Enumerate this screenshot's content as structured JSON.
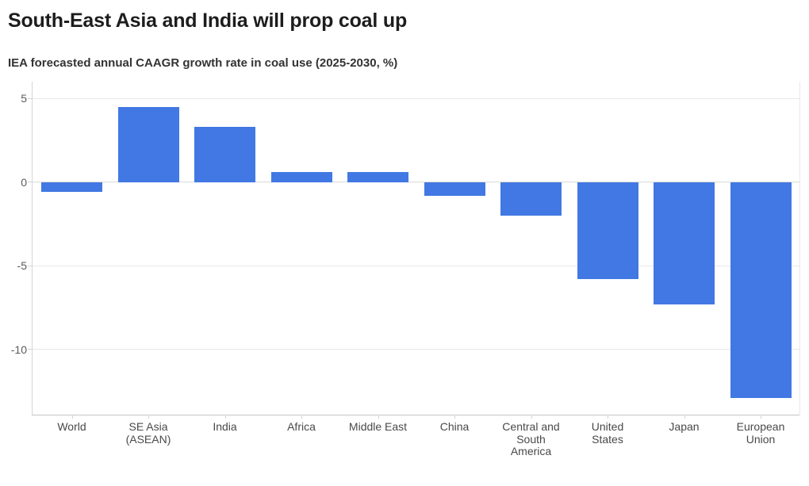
{
  "chart_data": {
    "type": "bar",
    "title": "South-East Asia and India will prop coal up",
    "subtitle": "IEA forecasted annual CAAGR growth rate in coal use (2025-2030, %)",
    "categories": [
      "World",
      "SE Asia (ASEAN)",
      "India",
      "Africa",
      "Middle East",
      "China",
      "Central and South America",
      "United States",
      "Japan",
      "European Union"
    ],
    "values": [
      -0.6,
      4.5,
      3.3,
      0.6,
      0.6,
      -0.8,
      -2.0,
      -5.8,
      -7.3,
      -12.9
    ],
    "category_label_lines": [
      [
        "World"
      ],
      [
        "SE Asia",
        "(ASEAN)"
      ],
      [
        "India"
      ],
      [
        "Africa"
      ],
      [
        "Middle East"
      ],
      [
        "China"
      ],
      [
        "Central and",
        "South",
        "America"
      ],
      [
        "United",
        "States"
      ],
      [
        "Japan"
      ],
      [
        "European",
        "Union"
      ]
    ],
    "xlabel": "",
    "ylabel": "",
    "yticks": [
      5,
      0,
      -5,
      -10
    ],
    "ytick_labels": [
      "5",
      "0",
      "-5",
      "-10"
    ],
    "ylim": [
      -13.9,
      6.0
    ],
    "grid": true,
    "legend": false
  },
  "colors": {
    "bar": "#4178E3",
    "title": "#1D1D1D",
    "subtitle": "#333333",
    "tick_label": "#5B5B5B",
    "category_label": "#494949",
    "gridline": "#E8E8E8",
    "zero_line": "#DADADA",
    "axis_line": "#D4D4D4",
    "baseline": "#C4C4C4",
    "background": "#FFFFFF"
  }
}
